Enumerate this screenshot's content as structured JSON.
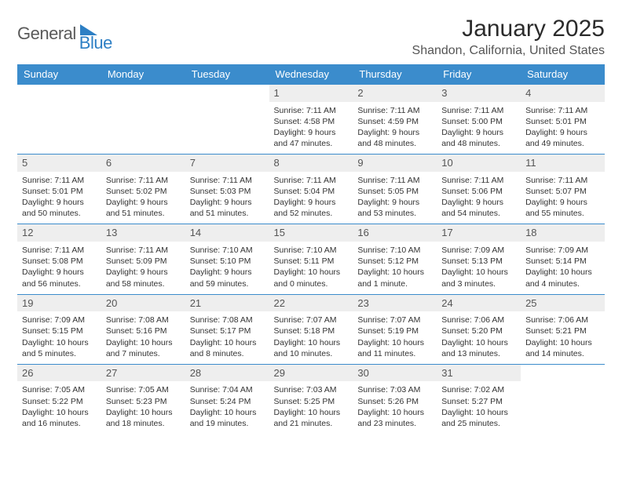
{
  "logo": {
    "word1": "General",
    "word2": "Blue"
  },
  "title": "January 2025",
  "location": "Shandon, California, United States",
  "days_of_week": [
    "Sunday",
    "Monday",
    "Tuesday",
    "Wednesday",
    "Thursday",
    "Friday",
    "Saturday"
  ],
  "colors": {
    "header_bg": "#3b8ccc",
    "header_text": "#ffffff",
    "rule": "#3b8ccc",
    "daynum_bg": "#eeeeee",
    "text": "#333333",
    "logo_gray": "#5a5a5a",
    "logo_blue": "#2d7fc4"
  },
  "grid": {
    "rows": 5,
    "cols": 7,
    "first_weekday_index": 3,
    "days_in_month": 31
  },
  "typography": {
    "title_fontsize": 30,
    "location_fontsize": 16,
    "dow_fontsize": 13,
    "cell_fontsize": 10.5
  },
  "cells": [
    {
      "day": 1,
      "sunrise": "7:11 AM",
      "sunset": "4:58 PM",
      "daylight": "9 hours and 47 minutes."
    },
    {
      "day": 2,
      "sunrise": "7:11 AM",
      "sunset": "4:59 PM",
      "daylight": "9 hours and 48 minutes."
    },
    {
      "day": 3,
      "sunrise": "7:11 AM",
      "sunset": "5:00 PM",
      "daylight": "9 hours and 48 minutes."
    },
    {
      "day": 4,
      "sunrise": "7:11 AM",
      "sunset": "5:01 PM",
      "daylight": "9 hours and 49 minutes."
    },
    {
      "day": 5,
      "sunrise": "7:11 AM",
      "sunset": "5:01 PM",
      "daylight": "9 hours and 50 minutes."
    },
    {
      "day": 6,
      "sunrise": "7:11 AM",
      "sunset": "5:02 PM",
      "daylight": "9 hours and 51 minutes."
    },
    {
      "day": 7,
      "sunrise": "7:11 AM",
      "sunset": "5:03 PM",
      "daylight": "9 hours and 51 minutes."
    },
    {
      "day": 8,
      "sunrise": "7:11 AM",
      "sunset": "5:04 PM",
      "daylight": "9 hours and 52 minutes."
    },
    {
      "day": 9,
      "sunrise": "7:11 AM",
      "sunset": "5:05 PM",
      "daylight": "9 hours and 53 minutes."
    },
    {
      "day": 10,
      "sunrise": "7:11 AM",
      "sunset": "5:06 PM",
      "daylight": "9 hours and 54 minutes."
    },
    {
      "day": 11,
      "sunrise": "7:11 AM",
      "sunset": "5:07 PM",
      "daylight": "9 hours and 55 minutes."
    },
    {
      "day": 12,
      "sunrise": "7:11 AM",
      "sunset": "5:08 PM",
      "daylight": "9 hours and 56 minutes."
    },
    {
      "day": 13,
      "sunrise": "7:11 AM",
      "sunset": "5:09 PM",
      "daylight": "9 hours and 58 minutes."
    },
    {
      "day": 14,
      "sunrise": "7:10 AM",
      "sunset": "5:10 PM",
      "daylight": "9 hours and 59 minutes."
    },
    {
      "day": 15,
      "sunrise": "7:10 AM",
      "sunset": "5:11 PM",
      "daylight": "10 hours and 0 minutes."
    },
    {
      "day": 16,
      "sunrise": "7:10 AM",
      "sunset": "5:12 PM",
      "daylight": "10 hours and 1 minute."
    },
    {
      "day": 17,
      "sunrise": "7:09 AM",
      "sunset": "5:13 PM",
      "daylight": "10 hours and 3 minutes."
    },
    {
      "day": 18,
      "sunrise": "7:09 AM",
      "sunset": "5:14 PM",
      "daylight": "10 hours and 4 minutes."
    },
    {
      "day": 19,
      "sunrise": "7:09 AM",
      "sunset": "5:15 PM",
      "daylight": "10 hours and 5 minutes."
    },
    {
      "day": 20,
      "sunrise": "7:08 AM",
      "sunset": "5:16 PM",
      "daylight": "10 hours and 7 minutes."
    },
    {
      "day": 21,
      "sunrise": "7:08 AM",
      "sunset": "5:17 PM",
      "daylight": "10 hours and 8 minutes."
    },
    {
      "day": 22,
      "sunrise": "7:07 AM",
      "sunset": "5:18 PM",
      "daylight": "10 hours and 10 minutes."
    },
    {
      "day": 23,
      "sunrise": "7:07 AM",
      "sunset": "5:19 PM",
      "daylight": "10 hours and 11 minutes."
    },
    {
      "day": 24,
      "sunrise": "7:06 AM",
      "sunset": "5:20 PM",
      "daylight": "10 hours and 13 minutes."
    },
    {
      "day": 25,
      "sunrise": "7:06 AM",
      "sunset": "5:21 PM",
      "daylight": "10 hours and 14 minutes."
    },
    {
      "day": 26,
      "sunrise": "7:05 AM",
      "sunset": "5:22 PM",
      "daylight": "10 hours and 16 minutes."
    },
    {
      "day": 27,
      "sunrise": "7:05 AM",
      "sunset": "5:23 PM",
      "daylight": "10 hours and 18 minutes."
    },
    {
      "day": 28,
      "sunrise": "7:04 AM",
      "sunset": "5:24 PM",
      "daylight": "10 hours and 19 minutes."
    },
    {
      "day": 29,
      "sunrise": "7:03 AM",
      "sunset": "5:25 PM",
      "daylight": "10 hours and 21 minutes."
    },
    {
      "day": 30,
      "sunrise": "7:03 AM",
      "sunset": "5:26 PM",
      "daylight": "10 hours and 23 minutes."
    },
    {
      "day": 31,
      "sunrise": "7:02 AM",
      "sunset": "5:27 PM",
      "daylight": "10 hours and 25 minutes."
    }
  ],
  "labels": {
    "sunrise": "Sunrise: ",
    "sunset": "Sunset: ",
    "daylight": "Daylight: "
  }
}
